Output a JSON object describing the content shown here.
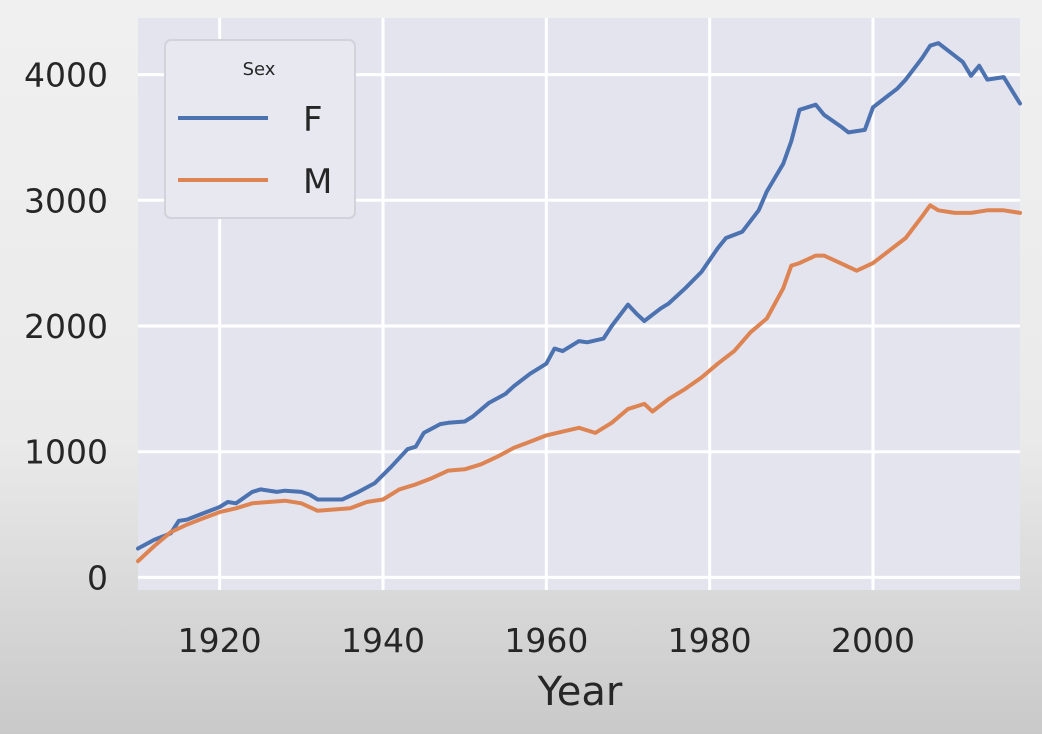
{
  "chart_data": {
    "type": "line",
    "title": "",
    "xlabel": "Year",
    "ylabel": "",
    "xlim": [
      1910,
      2018
    ],
    "ylim": [
      -100,
      4450
    ],
    "xticks": [
      1920,
      1940,
      1960,
      1980,
      2000
    ],
    "yticks": [
      0,
      1000,
      2000,
      3000,
      4000
    ],
    "grid": true,
    "legend": {
      "title": "Sex",
      "position": "top-left"
    },
    "series": [
      {
        "name": "F",
        "color": "#4c72b0",
        "x": [
          1910,
          1912,
          1914,
          1915,
          1916,
          1918,
          1920,
          1921,
          1922,
          1924,
          1925,
          1927,
          1928,
          1930,
          1931,
          1932,
          1935,
          1937,
          1939,
          1941,
          1943,
          1944,
          1945,
          1947,
          1948,
          1950,
          1951,
          1953,
          1955,
          1956,
          1958,
          1960,
          1961,
          1962,
          1964,
          1965,
          1967,
          1968,
          1970,
          1971,
          1972,
          1974,
          1975,
          1977,
          1979,
          1981,
          1982,
          1984,
          1986,
          1987,
          1989,
          1990,
          1991,
          1993,
          1994,
          1996,
          1997,
          1999,
          2000,
          2001,
          2003,
          2004,
          2006,
          2007,
          2008,
          2010,
          2011,
          2012,
          2013,
          2014,
          2016,
          2018
        ],
        "y": [
          230,
          300,
          350,
          450,
          460,
          510,
          560,
          600,
          590,
          680,
          700,
          680,
          690,
          680,
          660,
          620,
          620,
          680,
          750,
          880,
          1020,
          1040,
          1150,
          1220,
          1230,
          1240,
          1280,
          1390,
          1460,
          1520,
          1620,
          1700,
          1820,
          1800,
          1880,
          1870,
          1900,
          2000,
          2170,
          2100,
          2040,
          2140,
          2180,
          2300,
          2430,
          2620,
          2700,
          2750,
          2920,
          3070,
          3290,
          3470,
          3720,
          3760,
          3680,
          3590,
          3540,
          3560,
          3740,
          3790,
          3890,
          3960,
          4130,
          4230,
          4250,
          4150,
          4100,
          3990,
          4070,
          3960,
          3980,
          3770
        ]
      },
      {
        "name": "M",
        "color": "#dd8452",
        "x": [
          1910,
          1912,
          1914,
          1916,
          1918,
          1920,
          1922,
          1924,
          1926,
          1928,
          1930,
          1932,
          1934,
          1936,
          1938,
          1940,
          1942,
          1944,
          1946,
          1948,
          1950,
          1952,
          1954,
          1956,
          1958,
          1960,
          1962,
          1964,
          1966,
          1968,
          1970,
          1972,
          1973,
          1975,
          1977,
          1979,
          1981,
          1983,
          1985,
          1987,
          1989,
          1990,
          1991,
          1993,
          1994,
          1996,
          1998,
          2000,
          2002,
          2004,
          2006,
          2007,
          2008,
          2010,
          2012,
          2014,
          2016,
          2018
        ],
        "y": [
          130,
          250,
          360,
          420,
          470,
          520,
          550,
          590,
          600,
          610,
          590,
          530,
          540,
          550,
          600,
          620,
          700,
          740,
          790,
          850,
          860,
          900,
          960,
          1030,
          1080,
          1130,
          1160,
          1190,
          1150,
          1230,
          1340,
          1380,
          1320,
          1420,
          1500,
          1590,
          1700,
          1800,
          1950,
          2060,
          2300,
          2480,
          2500,
          2560,
          2560,
          2500,
          2440,
          2500,
          2600,
          2700,
          2870,
          2960,
          2920,
          2900,
          2900,
          2920,
          2920,
          2900
        ]
      }
    ]
  }
}
